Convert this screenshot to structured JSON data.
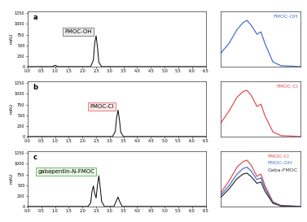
{
  "chart_data": [
    {
      "type": "line",
      "annotations": [
        "a",
        "FMOC-OH"
      ],
      "y_label": "mAU",
      "x": [
        0.0,
        0.9,
        1.0,
        1.1,
        2.3,
        2.4,
        2.45,
        2.5,
        2.55,
        2.6,
        2.7,
        6.5
      ],
      "values": [
        0,
        0,
        30,
        0,
        0,
        150,
        560,
        720,
        450,
        100,
        0,
        0
      ],
      "color": "#000000",
      "xlim": [
        0.0,
        6.5
      ],
      "xticks": [
        0.0,
        0.5,
        1.0,
        1.5,
        2.0,
        2.5,
        3.0,
        3.5,
        4.0,
        4.5,
        5.0,
        5.5,
        6.0,
        6.5
      ],
      "ylim": [
        0,
        1300
      ],
      "yticks": [
        0,
        250,
        500,
        750,
        1000,
        1250
      ]
    },
    {
      "type": "line",
      "legend": "upper right",
      "tick_labels": false,
      "x": [
        200,
        220,
        240,
        255,
        265,
        275,
        290,
        300,
        310,
        330,
        350,
        400
      ],
      "series": [
        {
          "name": "FMOC-OH",
          "color": "#4a6fd0",
          "values": [
            0.3,
            0.5,
            0.8,
            0.95,
            1.0,
            0.9,
            0.7,
            0.75,
            0.5,
            0.1,
            0.02,
            0.0
          ]
        }
      ],
      "xlim": [
        200,
        400
      ],
      "ylim": [
        0,
        1.2
      ]
    },
    {
      "type": "line",
      "annotations": [
        "b",
        "FMOC-Cl"
      ],
      "y_label": "mAU",
      "x": [
        0.0,
        3.1,
        3.2,
        3.25,
        3.3,
        3.35,
        3.4,
        3.5,
        6.5
      ],
      "values": [
        0,
        0,
        120,
        450,
        620,
        400,
        100,
        0,
        0
      ],
      "color": "#000000",
      "xlim": [
        0.0,
        6.5
      ],
      "xticks": [
        0.0,
        0.5,
        1.0,
        1.5,
        2.0,
        2.5,
        3.0,
        3.5,
        4.0,
        4.5,
        5.0,
        5.5,
        6.0,
        6.5
      ],
      "ylim": [
        0,
        1300
      ],
      "yticks": [
        0,
        250,
        500,
        750,
        1000,
        1250
      ]
    },
    {
      "type": "line",
      "legend": "upper right",
      "tick_labels": false,
      "x": [
        200,
        220,
        240,
        255,
        265,
        275,
        290,
        300,
        310,
        330,
        350,
        400
      ],
      "series": [
        {
          "name": "FMOC-Cl",
          "color": "#e05050",
          "values": [
            0.3,
            0.55,
            0.85,
            0.97,
            1.0,
            0.9,
            0.65,
            0.7,
            0.45,
            0.1,
            0.02,
            0.0
          ]
        }
      ],
      "xlim": [
        200,
        400
      ],
      "ylim": [
        0,
        1.2
      ]
    },
    {
      "type": "line",
      "annotations": [
        "c",
        "gabapentin-N-FMOC"
      ],
      "y_label": "mAU",
      "x": [
        0.0,
        2.2,
        2.3,
        2.35,
        2.4,
        2.45,
        2.5,
        2.55,
        2.6,
        2.65,
        2.7,
        2.8,
        3.15,
        3.25,
        3.3,
        3.35,
        3.45,
        6.5
      ],
      "values": [
        0,
        0,
        80,
        350,
        480,
        300,
        200,
        500,
        720,
        450,
        120,
        0,
        0,
        150,
        220,
        130,
        0,
        0
      ],
      "color": "#000000",
      "xlim": [
        0.0,
        6.5
      ],
      "xticks": [
        0.0,
        0.5,
        1.0,
        1.5,
        2.0,
        2.5,
        3.0,
        3.5,
        4.0,
        4.5,
        5.0,
        5.5,
        6.0,
        6.5
      ],
      "ylim": [
        0,
        1300
      ],
      "yticks": [
        0,
        250,
        500,
        750,
        1000,
        1250
      ]
    },
    {
      "type": "line",
      "legend": "upper right",
      "tick_labels": false,
      "x": [
        200,
        220,
        240,
        255,
        265,
        275,
        290,
        300,
        310,
        330,
        350,
        400
      ],
      "series": [
        {
          "name": "FMOC-Cl",
          "color": "#e05050",
          "values": [
            0.3,
            0.55,
            0.85,
            0.97,
            1.0,
            0.9,
            0.65,
            0.7,
            0.45,
            0.1,
            0.02,
            0.0
          ]
        },
        {
          "name": "FMOC-OH",
          "color": "#4a6fd0",
          "values": [
            0.25,
            0.45,
            0.7,
            0.82,
            0.85,
            0.77,
            0.58,
            0.62,
            0.4,
            0.08,
            0.02,
            0.0
          ]
        },
        {
          "name": "Gaba-FMOC",
          "color": "#333333",
          "values": [
            0.2,
            0.38,
            0.6,
            0.7,
            0.72,
            0.65,
            0.5,
            0.53,
            0.33,
            0.07,
            0.01,
            0.0
          ]
        }
      ],
      "xlim": [
        200,
        400
      ],
      "ylim": [
        0,
        1.2
      ]
    }
  ]
}
